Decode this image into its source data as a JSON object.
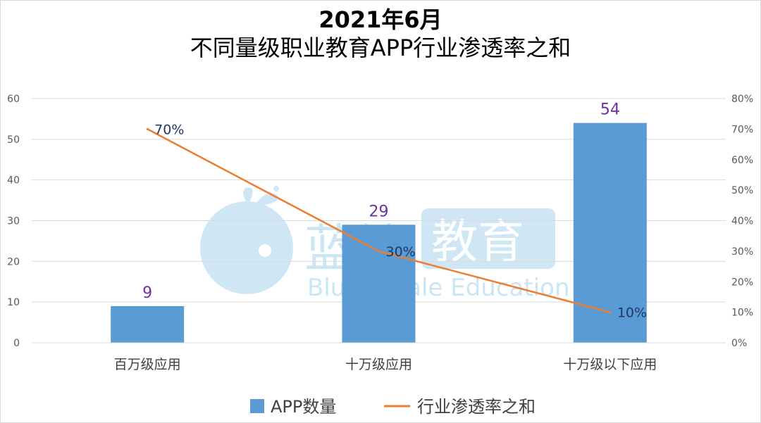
{
  "chart_data": {
    "type": "bar",
    "title": "2021年6月",
    "subtitle": "不同量级职业教育APP行业渗透率之和",
    "categories": [
      "百万级应用",
      "十万级应用",
      "十万级以下应用"
    ],
    "series": [
      {
        "name": "APP数量",
        "type": "bar",
        "axis": "left",
        "values": [
          9,
          29,
          54
        ],
        "labels": [
          "9",
          "29",
          "54"
        ],
        "color": "#5b9bd5"
      },
      {
        "name": "行业渗透率之和",
        "type": "line",
        "axis": "right",
        "values": [
          70,
          30,
          10
        ],
        "labels": [
          "70%",
          "30%",
          "10%"
        ],
        "color": "#ed7d31"
      }
    ],
    "y_left": {
      "min": 0,
      "max": 60,
      "ticks": [
        "0",
        "10",
        "20",
        "30",
        "40",
        "50",
        "60"
      ]
    },
    "y_right": {
      "min": 0,
      "max": 80,
      "ticks": [
        "0%",
        "10%",
        "20%",
        "30%",
        "40%",
        "50%",
        "60%",
        "70%",
        "80%"
      ]
    },
    "grid": true,
    "legend": "bottom"
  },
  "watermark": {
    "cn": "蓝鲸",
    "cn2": "教育",
    "en": "Blue Whale Education",
    "icon": "whale-logo-icon"
  }
}
